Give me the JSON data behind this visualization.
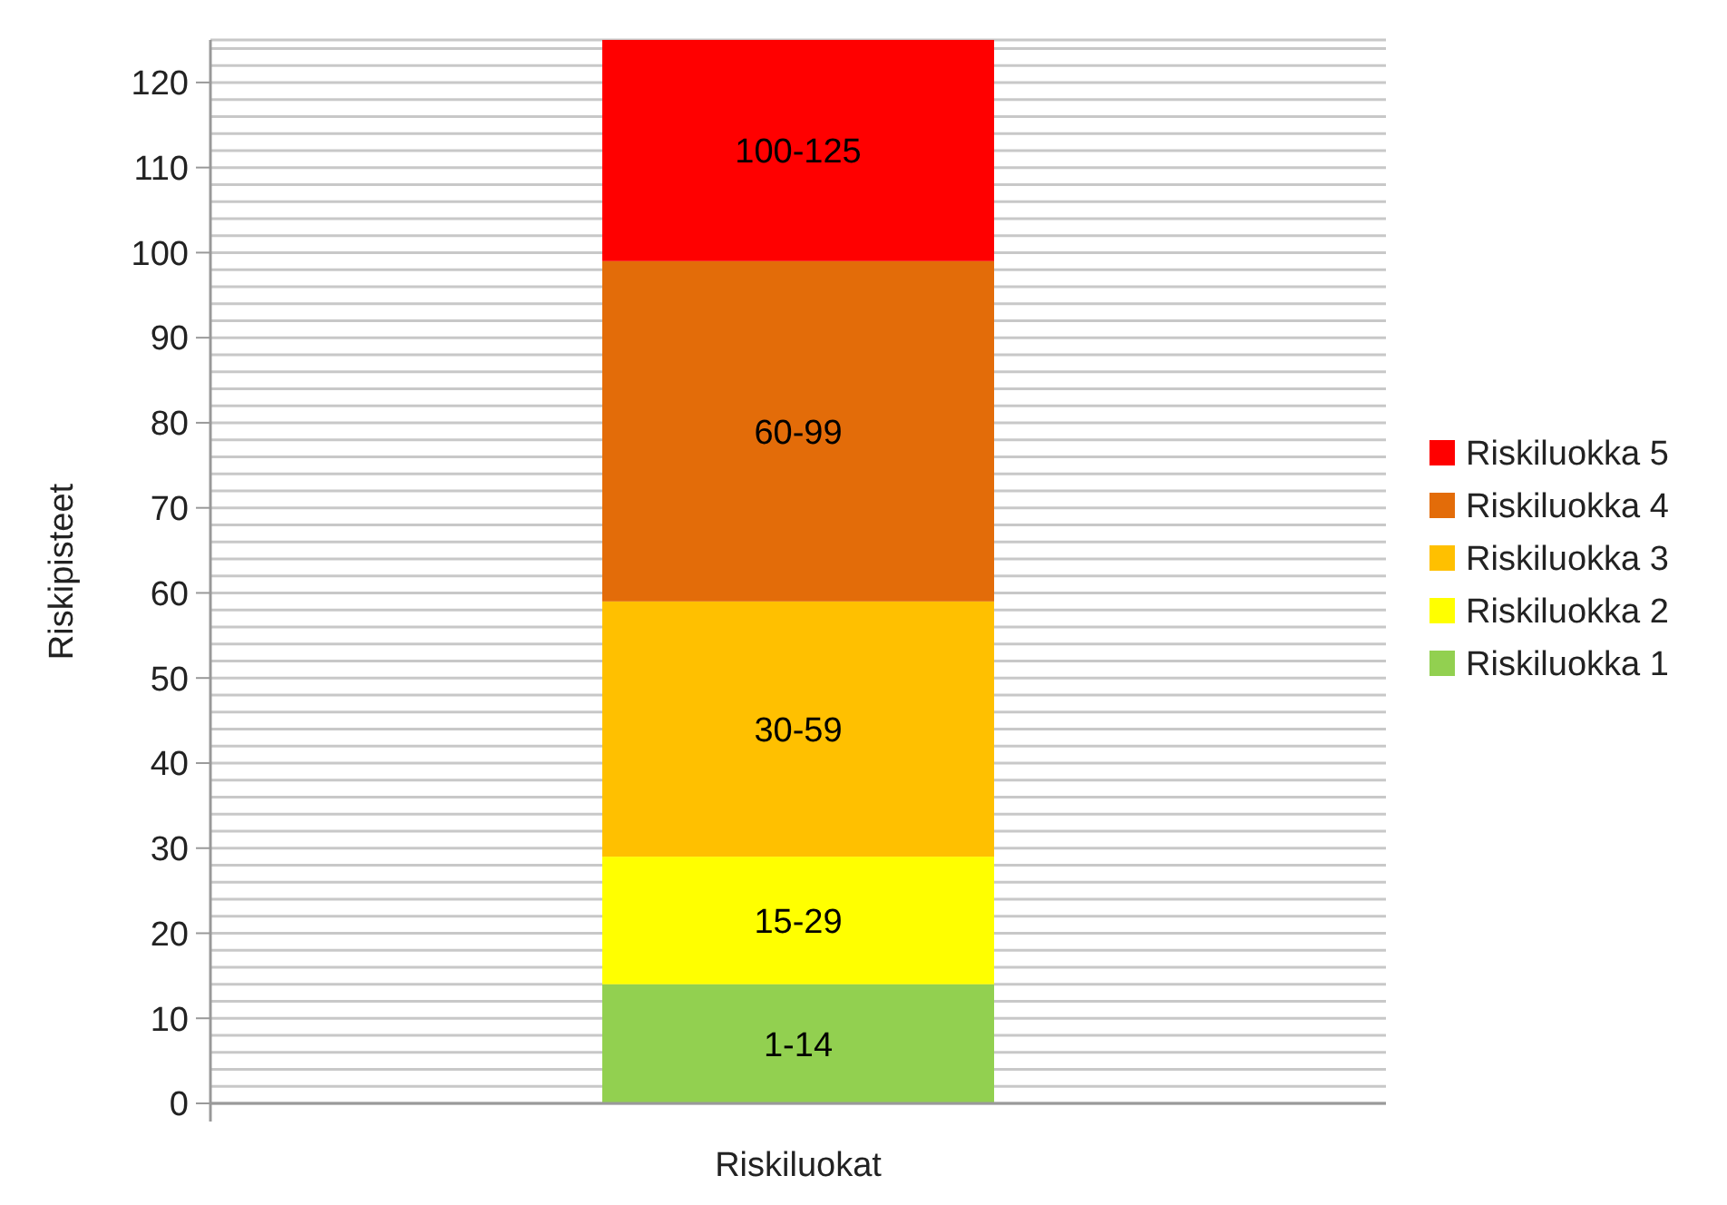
{
  "chart_data": {
    "type": "bar",
    "stacked": true,
    "xlabel": "Riskiluokat",
    "ylabel": "Riskipisteet",
    "categories": [
      null
    ],
    "ylim": [
      0,
      125
    ],
    "yticks": [
      0,
      {
        "value": 2,
        "label": null
      },
      {
        "value": 4,
        "label": null
      },
      {
        "value": 6,
        "label": null
      },
      {
        "value": 8,
        "label": null
      },
      10,
      {
        "value": 12,
        "label": null
      },
      {
        "value": 14,
        "label": null
      },
      {
        "value": 16,
        "label": null
      },
      {
        "value": 18,
        "label": null
      },
      20,
      {
        "value": 22,
        "label": null
      },
      {
        "value": 24,
        "label": null
      },
      {
        "value": 26,
        "label": null
      },
      {
        "value": 28,
        "label": null
      },
      30,
      {
        "value": 32,
        "label": null
      },
      {
        "value": 34,
        "label": null
      },
      {
        "value": 36,
        "label": null
      },
      {
        "value": 38,
        "label": null
      },
      40,
      {
        "value": 42,
        "label": null
      },
      {
        "value": 44,
        "label": null
      },
      {
        "value": 46,
        "label": null
      },
      {
        "value": 48,
        "label": null
      },
      50,
      {
        "value": 52,
        "label": null
      },
      {
        "value": 54,
        "label": null
      },
      {
        "value": 56,
        "label": null
      },
      {
        "value": 58,
        "label": null
      },
      60,
      {
        "value": 62,
        "label": null
      },
      {
        "value": 64,
        "label": null
      },
      {
        "value": 66,
        "label": null
      },
      {
        "value": 68,
        "label": null
      },
      70,
      {
        "value": 72,
        "label": null
      },
      {
        "value": 74,
        "label": null
      },
      {
        "value": 76,
        "label": null
      },
      {
        "value": 78,
        "label": null
      },
      80,
      {
        "value": 82,
        "label": null
      },
      {
        "value": 84,
        "label": null
      },
      {
        "value": 86,
        "label": null
      },
      {
        "value": 88,
        "label": null
      },
      90,
      {
        "value": 92,
        "label": null
      },
      {
        "value": 94,
        "label": null
      },
      {
        "value": 96,
        "label": null
      },
      {
        "value": 98,
        "label": null
      },
      100,
      {
        "value": 102,
        "label": null
      },
      {
        "value": 104,
        "label": null
      },
      {
        "value": 106,
        "label": null
      },
      {
        "value": 108,
        "label": null
      },
      110,
      {
        "value": 112,
        "label": null
      },
      {
        "value": 114,
        "label": null
      },
      {
        "value": 116,
        "label": null
      },
      {
        "value": 118,
        "label": null
      },
      120,
      {
        "value": 122,
        "label": null
      },
      {
        "value": 124,
        "label": null
      }
    ],
    "grid": "y",
    "legend": "right",
    "series": [
      {
        "name": "Riskiluokka 1",
        "color": "#92d050",
        "values": [
          14
        ],
        "value_labels": [
          "1-14"
        ]
      },
      {
        "name": "Riskiluokka 2",
        "color": "#ffff00",
        "values": [
          15
        ],
        "value_labels": [
          "15-29"
        ]
      },
      {
        "name": "Riskiluokka 3",
        "color": "#ffc000",
        "values": [
          30
        ],
        "value_labels": [
          "30-59"
        ]
      },
      {
        "name": "Riskiluokka 4",
        "color": "#e36c09",
        "values": [
          40
        ],
        "value_labels": [
          "60-99"
        ]
      },
      {
        "name": "Riskiluokka 5",
        "color": "#ff0000",
        "values": [
          26
        ],
        "value_labels": [
          "100-125"
        ]
      }
    ]
  }
}
